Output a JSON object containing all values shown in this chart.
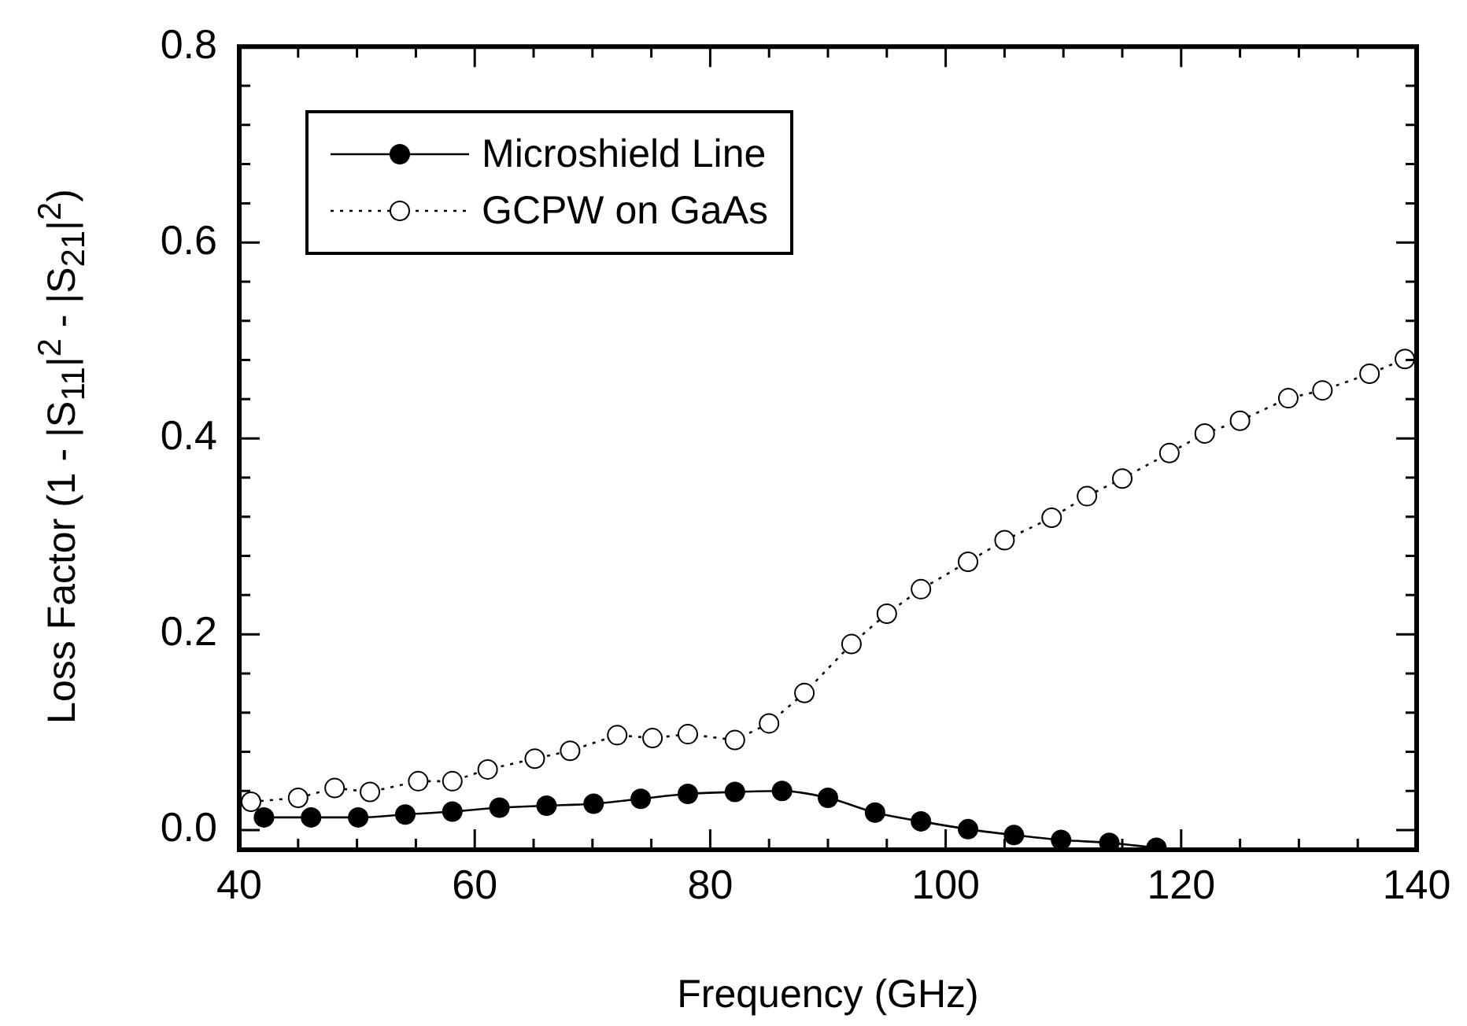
{
  "chart_data": {
    "type": "line",
    "xlabel": "Frequency (GHz)",
    "ylabel": "Loss Factor (1 - |S$_{11}$|$^{2}$ - |S$_{21}$|$^{2}$)",
    "xlim": [
      40,
      140
    ],
    "ylim": [
      -0.02,
      0.8
    ],
    "xticks": [
      40,
      {
        "value": 45,
        "label": null
      },
      {
        "value": 50,
        "label": null
      },
      {
        "value": 55,
        "label": null
      },
      60,
      {
        "value": 65,
        "label": null
      },
      {
        "value": 70,
        "label": null
      },
      {
        "value": 75,
        "label": null
      },
      80,
      {
        "value": 85,
        "label": null
      },
      {
        "value": 90,
        "label": null
      },
      {
        "value": 95,
        "label": null
      },
      100,
      {
        "value": 105,
        "label": null
      },
      {
        "value": 110,
        "label": null
      },
      {
        "value": 115,
        "label": null
      },
      120,
      {
        "value": 125,
        "label": null
      },
      {
        "value": 130,
        "label": null
      },
      {
        "value": 135,
        "label": null
      },
      140
    ],
    "yticks": [
      {
        "value": 0,
        "label": "0.0"
      },
      {
        "value": 0.04,
        "label": null
      },
      {
        "value": 0.08,
        "label": null
      },
      {
        "value": 0.12,
        "label": null
      },
      {
        "value": 0.16,
        "label": null
      },
      {
        "value": 0.2,
        "label": "0.2"
      },
      {
        "value": 0.24,
        "label": null
      },
      {
        "value": 0.28,
        "label": null
      },
      {
        "value": 0.32,
        "label": null
      },
      {
        "value": 0.36,
        "label": null
      },
      {
        "value": 0.4,
        "label": "0.4"
      },
      {
        "value": 0.44,
        "label": null
      },
      {
        "value": 0.48,
        "label": null
      },
      {
        "value": 0.52,
        "label": null
      },
      {
        "value": 0.56,
        "label": null
      },
      {
        "value": 0.6,
        "label": "0.6"
      },
      {
        "value": 0.64,
        "label": null
      },
      {
        "value": 0.68,
        "label": null
      },
      {
        "value": 0.72,
        "label": null
      },
      {
        "value": 0.76,
        "label": null
      },
      {
        "value": 0.8,
        "label": "0.8"
      }
    ],
    "grid": false,
    "legend": "top left",
    "marker": "circle",
    "series": [
      {
        "name": "Microshield Line",
        "color": "#000000",
        "line_style": "solid",
        "x": [
          42.1,
          46.1,
          50.1,
          54.1,
          58.1,
          62.1,
          66.1,
          70.1,
          74.1,
          78.1,
          82.1,
          86.1,
          90.0,
          94.0,
          97.9,
          101.9,
          105.8,
          109.8,
          113.9,
          117.9
        ],
        "values": [
          0.013,
          0.013,
          0.013,
          0.016,
          0.019,
          0.023,
          0.025,
          0.027,
          0.032,
          0.037,
          0.039,
          0.04,
          0.033,
          0.018,
          0.009,
          0.001,
          -0.005,
          -0.01,
          -0.013,
          -0.018
        ]
      },
      {
        "name": "GCPW on GaAs",
        "color": "#000000",
        "line_style": "dotted",
        "x": [
          41.0,
          45.0,
          48.1,
          51.1,
          55.2,
          58.1,
          61.1,
          65.1,
          68.1,
          72.1,
          75.1,
          78.1,
          82.1,
          85.0,
          88.0,
          92.0,
          95.0,
          97.9,
          101.9,
          105.0,
          109.0,
          112.0,
          115.0,
          119.0,
          122.0,
          125.0,
          129.1,
          132.0,
          136.0,
          139.0
        ],
        "values": [
          0.029,
          0.033,
          0.043,
          0.039,
          0.05,
          0.05,
          0.062,
          0.073,
          0.081,
          0.097,
          0.094,
          0.098,
          0.092,
          0.109,
          0.14,
          0.19,
          0.221,
          0.246,
          0.274,
          0.296,
          0.319,
          0.341,
          0.359,
          0.385,
          0.405,
          0.418,
          0.441,
          0.449,
          0.466,
          0.481
        ]
      }
    ]
  }
}
